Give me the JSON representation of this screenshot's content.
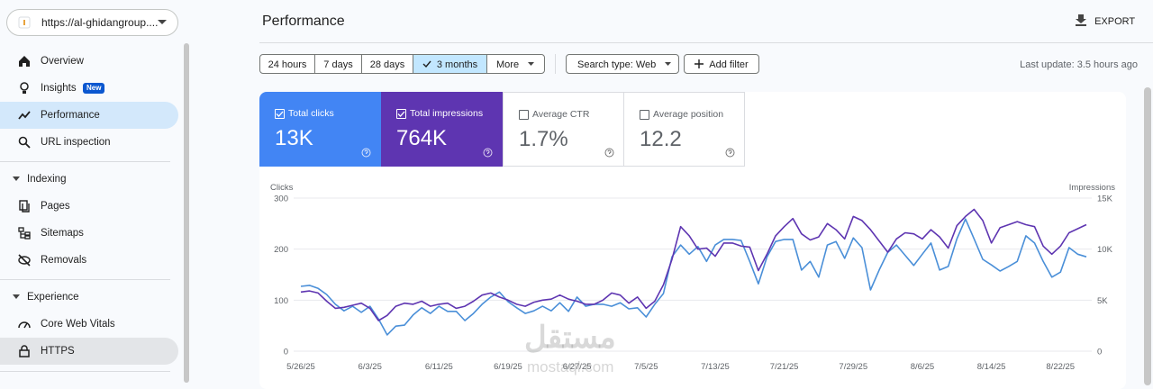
{
  "sidebar": {
    "property": "https://al-ghidangroup....",
    "nav": [
      {
        "label": "Overview"
      },
      {
        "label": "Insights",
        "badge": "New"
      },
      {
        "label": "Performance"
      },
      {
        "label": "URL inspection"
      }
    ],
    "sections": [
      {
        "title": "Indexing",
        "items": [
          "Pages",
          "Sitemaps",
          "Removals"
        ]
      },
      {
        "title": "Experience",
        "items": [
          "Core Web Vitals",
          "HTTPS"
        ]
      }
    ]
  },
  "header": {
    "title": "Performance",
    "export": "EXPORT"
  },
  "toolbar": {
    "ranges": [
      "24 hours",
      "7 days",
      "28 days",
      "3 months"
    ],
    "more": "More",
    "search_type": "Search type: Web",
    "add_filter": "Add filter",
    "last_update": "Last update: 3.5 hours ago"
  },
  "metrics": [
    {
      "label": "Total clicks",
      "value": "13K"
    },
    {
      "label": "Total impressions",
      "value": "764K"
    },
    {
      "label": "Average CTR",
      "value": "1.7%"
    },
    {
      "label": "Average position",
      "value": "12.2"
    }
  ],
  "watermark": {
    "arabic": "مستقل",
    "latin": "mostaql.com"
  },
  "chart_data": {
    "type": "line",
    "y_label": "Clicks",
    "y2_label": "Impressions",
    "categories": [
      "5/26/25",
      null,
      null,
      null,
      null,
      null,
      null,
      null,
      "6/3/25",
      null,
      null,
      null,
      null,
      null,
      null,
      null,
      "6/11/25",
      null,
      null,
      null,
      null,
      null,
      null,
      null,
      "6/19/25",
      null,
      null,
      null,
      null,
      null,
      null,
      null,
      "6/27/25",
      null,
      null,
      null,
      null,
      null,
      null,
      null,
      "7/5/25",
      null,
      null,
      null,
      null,
      null,
      null,
      null,
      "7/13/25",
      null,
      null,
      null,
      null,
      null,
      null,
      null,
      "7/21/25",
      null,
      null,
      null,
      null,
      null,
      null,
      null,
      "7/29/25",
      null,
      null,
      null,
      null,
      null,
      null,
      null,
      "8/6/25",
      null,
      null,
      null,
      null,
      null,
      null,
      null,
      "8/14/25",
      null,
      null,
      null,
      null,
      null,
      null,
      null,
      "8/22/25",
      null,
      null,
      null
    ],
    "series": [
      {
        "name": "Clicks",
        "color": "#4a8fd8",
        "values": [
          127,
          129,
          123,
          111,
          92,
          79,
          88,
          76,
          88,
          63,
          32,
          49,
          51,
          71,
          85,
          74,
          88,
          78,
          78,
          60,
          74,
          92,
          106,
          116,
          97,
          85,
          74,
          79,
          88,
          79,
          95,
          78,
          106,
          88,
          92,
          92,
          88,
          95,
          83,
          85,
          67,
          92,
          113,
          185,
          208,
          190,
          205,
          176,
          208,
          219,
          219,
          217,
          176,
          132,
          185,
          215,
          219,
          219,
          159,
          176,
          145,
          208,
          215,
          182,
          222,
          203,
          120,
          159,
          194,
          208,
          188,
          168,
          190,
          212,
          159,
          166,
          220,
          259,
          220,
          180,
          169,
          157,
          166,
          176,
          226,
          212,
          176,
          145,
          155,
          203,
          190,
          185
        ]
      },
      {
        "name": "Impressions",
        "color": "#5e35b1",
        "axis": "y2",
        "values": [
          5800,
          5900,
          5700,
          4900,
          4200,
          4300,
          4500,
          4700,
          4200,
          3000,
          3500,
          4400,
          4700,
          4600,
          4900,
          4400,
          4600,
          4700,
          4200,
          4400,
          4900,
          5500,
          5700,
          5300,
          5000,
          4600,
          4400,
          4800,
          5000,
          5100,
          5500,
          5100,
          4900,
          4600,
          4600,
          5000,
          5700,
          5500,
          4700,
          5300,
          4200,
          4900,
          6500,
          9000,
          12200,
          11300,
          10000,
          10100,
          9300,
          10600,
          10600,
          10300,
          10200,
          7900,
          9500,
          11300,
          12200,
          13000,
          11500,
          10900,
          11200,
          12500,
          11900,
          11000,
          13200,
          12800,
          11900,
          10800,
          9700,
          11000,
          11600,
          11500,
          11000,
          11900,
          11200,
          10100,
          12300,
          13200,
          13900,
          12800,
          10600,
          12100,
          12400,
          12700,
          12400,
          12200,
          10300,
          9500,
          10300,
          11600,
          12000,
          12400
        ]
      }
    ],
    "ylim": [
      0,
      300
    ],
    "yticks": [
      0,
      100,
      200,
      300
    ],
    "y2lim": [
      0,
      15000
    ],
    "y2ticks": [
      {
        "value": 0,
        "label": "0"
      },
      {
        "value": 5000,
        "label": "5K"
      },
      {
        "value": 10000,
        "label": "10K"
      },
      {
        "value": 15000,
        "label": "15K"
      }
    ],
    "grid": true
  }
}
